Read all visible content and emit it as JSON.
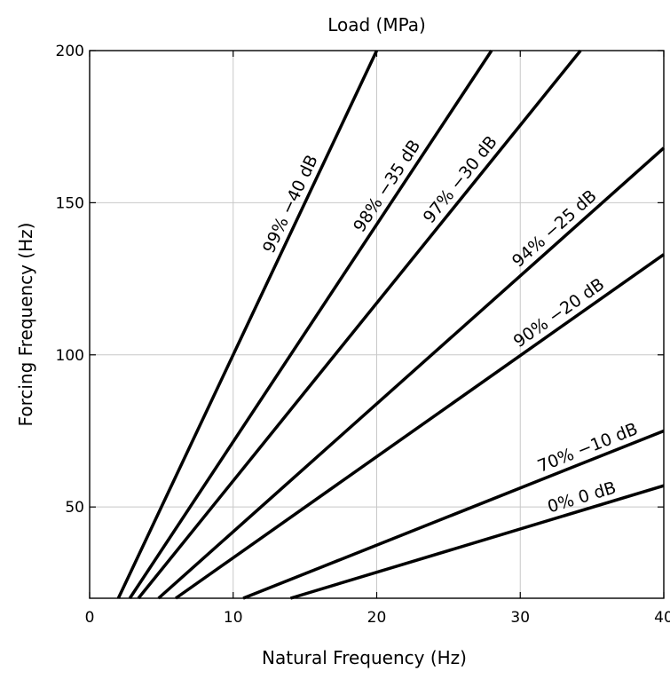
{
  "chart_data": {
    "type": "line",
    "title": "Load (MPa)",
    "xlabel": "Natural Frequency (Hz)",
    "ylabel": "Forcing Frequency (Hz)",
    "xlim": [
      0,
      40
    ],
    "ylim": [
      20,
      200
    ],
    "xticks": [
      0,
      10,
      20,
      30,
      40
    ],
    "yticks": [
      50,
      100,
      150,
      200
    ],
    "grid": true,
    "series": [
      {
        "label": "99% −40 dB",
        "x": [
          2.0,
          20.0
        ],
        "y": [
          20,
          200
        ]
      },
      {
        "label": "98% −35 dB",
        "x": [
          2.8,
          28.0
        ],
        "y": [
          20,
          200
        ]
      },
      {
        "label": "97% −30 dB",
        "x": [
          3.4,
          34.2
        ],
        "y": [
          20,
          200
        ]
      },
      {
        "label": "94% −25 dB",
        "x": [
          4.8,
          40.0
        ],
        "y": [
          20,
          168
        ]
      },
      {
        "label": "90% −20 dB",
        "x": [
          6.0,
          40.0
        ],
        "y": [
          20,
          133
        ]
      },
      {
        "label": "70% −10 dB",
        "x": [
          10.7,
          40.0
        ],
        "y": [
          20,
          75
        ]
      },
      {
        "label": "0% 0 dB",
        "x": [
          14.0,
          40.0
        ],
        "y": [
          20,
          57
        ]
      }
    ]
  }
}
